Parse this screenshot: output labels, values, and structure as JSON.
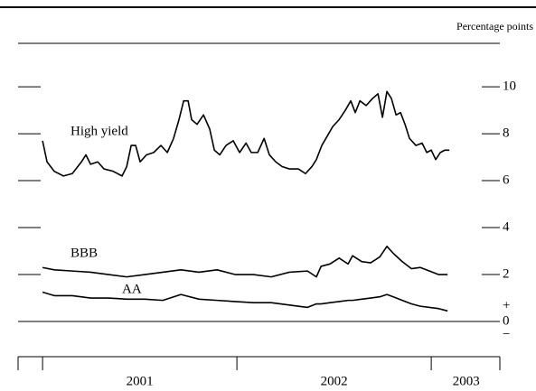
{
  "chart_data": {
    "type": "line",
    "y_unit_label": "Percentage points",
    "sign_above_zero": "+",
    "sign_below_zero": "−",
    "xlim": [
      2000.874,
      2003.353
    ],
    "x_boundaries": [
      2001,
      2002,
      2003
    ],
    "xticks": [
      {
        "value": 2001.5,
        "label": "2001"
      },
      {
        "value": 2002.5,
        "label": "2002"
      },
      {
        "value": 2003.18,
        "label": "2003"
      }
    ],
    "ylim": [
      -1.5,
      11.85
    ],
    "yticks": [
      0,
      2,
      4,
      6,
      8,
      10
    ],
    "series": [
      {
        "name": "High yield",
        "color": "#000000",
        "x": [
          2001.0,
          2001.023,
          2001.06,
          2001.107,
          2001.153,
          2001.2,
          2001.223,
          2001.247,
          2001.284,
          2001.316,
          2001.363,
          2001.409,
          2001.433,
          2001.456,
          2001.479,
          2001.502,
          2001.535,
          2001.572,
          2001.609,
          2001.642,
          2001.674,
          2001.702,
          2001.726,
          2001.749,
          2001.767,
          2001.795,
          2001.828,
          2001.86,
          2001.884,
          2001.912,
          2001.944,
          2001.981,
          2002.014,
          2002.047,
          2002.074,
          2002.107,
          2002.14,
          2002.167,
          2002.2,
          2002.233,
          2002.27,
          2002.316,
          2002.353,
          2002.386,
          2002.409,
          2002.437,
          2002.465,
          2002.493,
          2002.526,
          2002.558,
          2002.586,
          2002.609,
          2002.633,
          2002.665,
          2002.698,
          2002.726,
          2002.749,
          2002.772,
          2002.795,
          2002.819,
          2002.842,
          2002.865,
          2002.888,
          2002.921,
          2002.953,
          2002.977,
          2003.0,
          2003.023,
          2003.047,
          2003.07,
          2003.093
        ],
        "values": [
          7.7,
          6.8,
          6.4,
          6.2,
          6.3,
          6.8,
          7.1,
          6.7,
          6.8,
          6.5,
          6.4,
          6.2,
          6.6,
          7.5,
          7.5,
          6.8,
          7.1,
          7.2,
          7.5,
          7.2,
          7.8,
          8.6,
          9.4,
          9.4,
          8.6,
          8.4,
          8.8,
          8.2,
          7.3,
          7.1,
          7.5,
          7.7,
          7.2,
          7.6,
          7.2,
          7.2,
          7.8,
          7.1,
          6.8,
          6.6,
          6.5,
          6.5,
          6.3,
          6.6,
          6.9,
          7.5,
          7.9,
          8.3,
          8.6,
          9.0,
          9.4,
          8.9,
          9.4,
          9.2,
          9.5,
          9.7,
          8.7,
          9.8,
          9.5,
          8.8,
          8.9,
          8.4,
          7.8,
          7.5,
          7.6,
          7.2,
          7.3,
          6.9,
          7.2,
          7.3,
          7.3
        ]
      },
      {
        "name": "BBB",
        "color": "#000000",
        "x": [
          2001.0,
          2001.06,
          2001.153,
          2001.247,
          2001.34,
          2001.433,
          2001.526,
          2001.619,
          2001.712,
          2001.805,
          2001.898,
          2001.991,
          2002.084,
          2002.177,
          2002.27,
          2002.363,
          2002.409,
          2002.433,
          2002.479,
          2002.526,
          2002.572,
          2002.595,
          2002.642,
          2002.688,
          2002.735,
          2002.772,
          2002.805,
          2002.851,
          2002.898,
          2002.944,
          2002.991,
          2003.037,
          2003.084
        ],
        "values": [
          2.3,
          2.2,
          2.15,
          2.1,
          2.0,
          1.9,
          2.0,
          2.1,
          2.2,
          2.1,
          2.2,
          2.0,
          2.0,
          1.9,
          2.1,
          2.15,
          1.9,
          2.35,
          2.45,
          2.7,
          2.45,
          2.8,
          2.55,
          2.5,
          2.75,
          3.2,
          2.9,
          2.55,
          2.25,
          2.3,
          2.15,
          2.0,
          2.0
        ]
      },
      {
        "name": "AA",
        "color": "#000000",
        "x": [
          2001.0,
          2001.06,
          2001.153,
          2001.247,
          2001.34,
          2001.433,
          2001.526,
          2001.619,
          2001.712,
          2001.805,
          2001.898,
          2001.991,
          2002.084,
          2002.177,
          2002.27,
          2002.363,
          2002.409,
          2002.433,
          2002.479,
          2002.526,
          2002.572,
          2002.595,
          2002.642,
          2002.688,
          2002.735,
          2002.772,
          2002.805,
          2002.851,
          2002.898,
          2002.944,
          2002.991,
          2003.037,
          2003.084
        ],
        "values": [
          1.25,
          1.1,
          1.1,
          1.0,
          1.0,
          0.95,
          0.95,
          0.9,
          1.15,
          0.95,
          0.9,
          0.85,
          0.8,
          0.8,
          0.7,
          0.6,
          0.75,
          0.75,
          0.8,
          0.85,
          0.9,
          0.9,
          0.95,
          1.0,
          1.05,
          1.15,
          1.05,
          0.9,
          0.75,
          0.65,
          0.6,
          0.55,
          0.45
        ]
      }
    ]
  }
}
